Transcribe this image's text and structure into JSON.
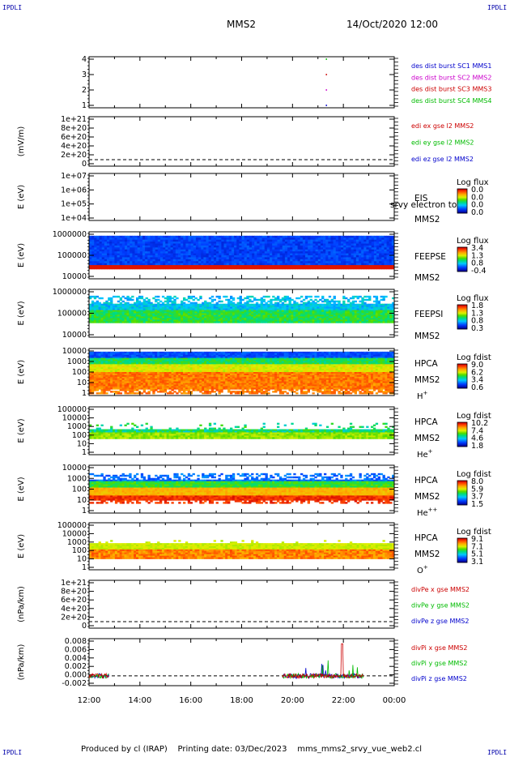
{
  "header": {
    "spacecraft": "MMS2",
    "datetime": "14/Oct/2020 12:00",
    "corner_tag": "IPDLI"
  },
  "footer": {
    "text": "Produced by cl (IRAP)    Printing date: 03/Dec/2023    mms_mms2_srvy_vue_web2.cl"
  },
  "x_axis": {
    "ticks": [
      "12:00",
      "14:00",
      "16:00",
      "18:00",
      "20:00",
      "22:00",
      "00:00"
    ]
  },
  "chart_data": [
    {
      "id": "burst",
      "type": "scatter",
      "ytick_labels": [
        "4",
        "3",
        "2",
        "1"
      ],
      "ylim": [
        0.5,
        4.5
      ],
      "legend": [
        {
          "text": "des dist burst SC1 MMS1",
          "color": "#0000cc"
        },
        {
          "text": "des dist burst SC2 MMS2",
          "color": "#cc00cc"
        },
        {
          "text": "des dist burst SC3 MMS3",
          "color": "#cc0000"
        },
        {
          "text": "des dist burst SC4 MMS4",
          "color": "#00bb00"
        }
      ],
      "series": [
        {
          "name": "des dist burst SC1 MMS1",
          "x": [
            "21:20"
          ],
          "y": [
            1
          ]
        },
        {
          "name": "des dist burst SC2 MMS2",
          "x": [
            "21:20"
          ],
          "y": [
            2
          ]
        },
        {
          "name": "des dist burst SC3 MMS3",
          "x": [
            "21:20"
          ],
          "y": [
            3
          ]
        },
        {
          "name": "des dist burst SC4 MMS4",
          "x": [
            "21:20"
          ],
          "y": [
            4
          ]
        }
      ]
    },
    {
      "id": "edi",
      "type": "line",
      "ylabel": "(mV/m)",
      "ytick_labels": [
        "1e+21",
        "8e+20",
        "6e+20",
        "4e+20",
        "2e+20",
        "0"
      ],
      "ylim": [
        0,
        1e+21
      ],
      "legend": [
        {
          "text": "edi ex gse l2 MMS2",
          "color": "#cc0000"
        },
        {
          "text": "edi ey gse l2 MMS2",
          "color": "#00bb00"
        },
        {
          "text": "edi ez gse l2 MMS2",
          "color": "#0000cc"
        }
      ]
    },
    {
      "id": "eis",
      "type": "heatmap",
      "ylabel": "E (eV)",
      "ytick_labels": [
        "1e+07",
        "1e+06",
        "1e+05",
        "1e+04"
      ],
      "scale": "log",
      "labels": [
        "EIS",
        "MMS2"
      ],
      "overlay_text": "srvy electron to",
      "colorbar": {
        "title": "Log flux",
        "ticks": [
          "0.0",
          "0.0",
          "0.0",
          "0.0"
        ]
      }
    },
    {
      "id": "feepse",
      "type": "heatmap",
      "ylabel": "E (eV)",
      "ytick_labels": [
        "1000000",
        "100000",
        "10000"
      ],
      "scale": "log",
      "labels": [
        "FEEPSE",
        "MMS2"
      ],
      "colorbar": {
        "title": "Log flux",
        "ticks": [
          "3.4",
          "1.3",
          "0.8",
          "-0.4"
        ]
      }
    },
    {
      "id": "feepsi",
      "type": "heatmap",
      "ylabel": "E (eV)",
      "ytick_labels": [
        "1000000",
        "100000",
        "10000"
      ],
      "scale": "log",
      "labels": [
        "FEEPSI",
        "MMS2"
      ],
      "colorbar": {
        "title": "Log flux",
        "ticks": [
          "1.8",
          "1.3",
          "0.8",
          "0.3"
        ]
      }
    },
    {
      "id": "hpca_h",
      "type": "heatmap",
      "ylabel": "E (eV)",
      "ytick_labels": [
        "10000",
        "1000",
        "100",
        "10",
        "1"
      ],
      "scale": "log",
      "labels": [
        "HPCA",
        "MMS2"
      ],
      "species": {
        "base": "H",
        "sup": "+"
      },
      "colorbar": {
        "title": "Log fdist",
        "ticks": [
          "9.0",
          "6.2",
          "3.4",
          "0.6"
        ]
      }
    },
    {
      "id": "hpca_he1",
      "type": "heatmap",
      "ylabel": "E (eV)",
      "ytick_labels": [
        "100000",
        "10000",
        "1000",
        "100",
        "10",
        "1"
      ],
      "scale": "log",
      "labels": [
        "HPCA",
        "MMS2"
      ],
      "species": {
        "base": "He",
        "sup": "+"
      },
      "colorbar": {
        "title": "Log fdist",
        "ticks": [
          "10.2",
          "7.4",
          "4.6",
          "1.8"
        ]
      }
    },
    {
      "id": "hpca_he2",
      "type": "heatmap",
      "ylabel": "E (eV)",
      "ytick_labels": [
        "10000",
        "1000",
        "100",
        "10",
        "1"
      ],
      "scale": "log",
      "labels": [
        "HPCA",
        "MMS2"
      ],
      "species": {
        "base": "He",
        "sup": "++"
      },
      "colorbar": {
        "title": "Log fdist",
        "ticks": [
          "8.0",
          "5.9",
          "3.7",
          "1.5"
        ]
      }
    },
    {
      "id": "hpca_o",
      "type": "heatmap",
      "ylabel": "E (eV)",
      "ytick_labels": [
        "100000",
        "10000",
        "1000",
        "100",
        "10",
        "1"
      ],
      "scale": "log",
      "labels": [
        "HPCA",
        "MMS2"
      ],
      "species": {
        "base": "O",
        "sup": "+"
      },
      "colorbar": {
        "title": "Log fdist",
        "ticks": [
          "9.1",
          "7.1",
          "5.1",
          "3.1"
        ]
      }
    },
    {
      "id": "divpe",
      "type": "line",
      "ylabel": "(nPa/km)",
      "ytick_labels": [
        "1e+21",
        "8e+20",
        "6e+20",
        "4e+20",
        "2e+20",
        "0"
      ],
      "ylim": [
        0,
        1e+21
      ],
      "legend": [
        {
          "text": "divPe x gse MMS2",
          "color": "#cc0000"
        },
        {
          "text": "divPe y gse MMS2",
          "color": "#00bb00"
        },
        {
          "text": "divPe z gse MMS2",
          "color": "#0000cc"
        }
      ]
    },
    {
      "id": "divpi",
      "type": "line",
      "ylabel": "(nPa/km)",
      "ytick_labels": [
        "0.008",
        "0.006",
        "0.004",
        "0.002",
        "0.000",
        "-0.002"
      ],
      "ylim": [
        -0.0025,
        0.0095
      ],
      "legend": [
        {
          "text": "divPi x gse MMS2",
          "color": "#cc0000"
        },
        {
          "text": "divPi y gse MMS2",
          "color": "#00bb00"
        },
        {
          "text": "divPi z gse MMS2",
          "color": "#0000cc"
        }
      ]
    }
  ]
}
